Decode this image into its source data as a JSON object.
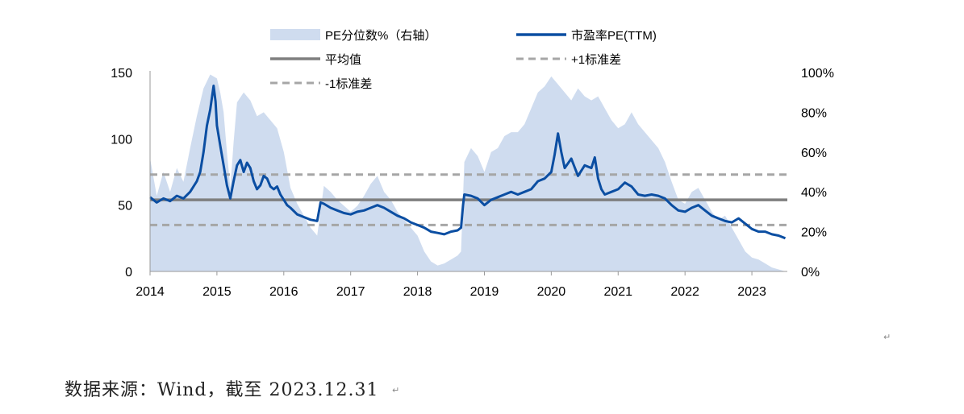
{
  "chart_data": {
    "type": "line",
    "title": "",
    "xlabel": "",
    "ylabel": "",
    "xlim": [
      2014.0,
      2023.53
    ],
    "ylim_left": [
      0,
      150
    ],
    "ylim_right": [
      0,
      1.0
    ],
    "left_ticks": [
      "150",
      "100",
      "50",
      "0"
    ],
    "left_tick_values": [
      150,
      100,
      50,
      0
    ],
    "right_ticks": [
      "100%",
      "80%",
      "60%",
      "40%",
      "20%",
      "0%"
    ],
    "right_tick_values": [
      1.0,
      0.8,
      0.6,
      0.4,
      0.2,
      0.0
    ],
    "x_ticks": [
      "2014",
      "2015",
      "2016",
      "2017",
      "2018",
      "2019",
      "2020",
      "2021",
      "2022",
      "2023"
    ],
    "x_tick_values": [
      2014,
      2015,
      2016,
      2017,
      2018,
      2019,
      2020,
      2021,
      2022,
      2023
    ],
    "grid": false,
    "legend": [
      {
        "label": "PE分位数%（右轴）",
        "style": "area",
        "color": "#cfdcef"
      },
      {
        "label": "市盈率PE(TTM)",
        "style": "line",
        "color": "#0b4ea2"
      },
      {
        "label": "平均值",
        "style": "line",
        "color": "#7f7f7f"
      },
      {
        "label": "+1标准差",
        "style": "dashed",
        "color": "#a6a6a6"
      },
      {
        "label": "-1标准差",
        "style": "dashed",
        "color": "#a6a6a6"
      }
    ],
    "colors": {
      "pe": "#0b4ea2",
      "percentile": "#cfdcef",
      "mean": "#7f7f7f",
      "std": "#a6a6a6"
    },
    "mean": 54,
    "plus_1_std": 73,
    "minus_1_std": 35,
    "series": [
      {
        "name": "市盈率PE(TTM)",
        "axis": "left",
        "x": [
          2014.0,
          2014.1,
          2014.2,
          2014.3,
          2014.4,
          2014.5,
          2014.6,
          2014.7,
          2014.75,
          2014.8,
          2014.85,
          2014.9,
          2014.95,
          2014.98,
          2015.0,
          2015.05,
          2015.1,
          2015.15,
          2015.2,
          2015.25,
          2015.3,
          2015.35,
          2015.4,
          2015.45,
          2015.5,
          2015.55,
          2015.6,
          2015.65,
          2015.7,
          2015.75,
          2015.8,
          2015.85,
          2015.9,
          2015.95,
          2016.0,
          2016.05,
          2016.1,
          2016.2,
          2016.3,
          2016.4,
          2016.5,
          2016.55,
          2016.6,
          2016.7,
          2016.8,
          2016.9,
          2017.0,
          2017.1,
          2017.2,
          2017.3,
          2017.4,
          2017.5,
          2017.6,
          2017.7,
          2017.8,
          2017.9,
          2018.0,
          2018.1,
          2018.2,
          2018.3,
          2018.4,
          2018.5,
          2018.6,
          2018.65,
          2018.68,
          2018.7,
          2018.8,
          2018.9,
          2019.0,
          2019.1,
          2019.2,
          2019.3,
          2019.4,
          2019.5,
          2019.6,
          2019.7,
          2019.8,
          2019.9,
          2020.0,
          2020.05,
          2020.1,
          2020.15,
          2020.2,
          2020.3,
          2020.4,
          2020.5,
          2020.6,
          2020.65,
          2020.7,
          2020.75,
          2020.8,
          2020.9,
          2021.0,
          2021.1,
          2021.2,
          2021.3,
          2021.4,
          2021.5,
          2021.6,
          2021.7,
          2021.8,
          2021.9,
          2022.0,
          2022.1,
          2022.2,
          2022.3,
          2022.4,
          2022.5,
          2022.6,
          2022.7,
          2022.8,
          2022.9,
          2023.0,
          2023.1,
          2023.2,
          2023.3,
          2023.4,
          2023.5
        ],
        "values": [
          56,
          52,
          55,
          53,
          57,
          55,
          60,
          68,
          75,
          90,
          110,
          122,
          140,
          128,
          110,
          95,
          80,
          65,
          55,
          68,
          80,
          84,
          75,
          82,
          78,
          68,
          62,
          65,
          72,
          70,
          64,
          62,
          64,
          58,
          54,
          50,
          48,
          43,
          41,
          39,
          38,
          52,
          51,
          48,
          46,
          44,
          43,
          45,
          46,
          48,
          50,
          48,
          45,
          42,
          40,
          37,
          35,
          33,
          30,
          29,
          28,
          30,
          31,
          33,
          50,
          58,
          57,
          55,
          50,
          54,
          56,
          58,
          60,
          58,
          60,
          62,
          68,
          70,
          75,
          88,
          104,
          90,
          78,
          85,
          72,
          80,
          78,
          86,
          70,
          62,
          58,
          60,
          62,
          67,
          64,
          58,
          57,
          58,
          57,
          55,
          50,
          46,
          45,
          48,
          50,
          46,
          42,
          40,
          38,
          37,
          40,
          36,
          32,
          30,
          30,
          28,
          27,
          25
        ]
      },
      {
        "name": "PE分位数%（右轴）",
        "axis": "right",
        "x": [
          2014.0,
          2014.1,
          2014.2,
          2014.3,
          2014.4,
          2014.5,
          2014.6,
          2014.7,
          2014.8,
          2014.9,
          2015.0,
          2015.05,
          2015.1,
          2015.15,
          2015.2,
          2015.25,
          2015.3,
          2015.4,
          2015.5,
          2015.6,
          2015.7,
          2015.8,
          2015.9,
          2016.0,
          2016.1,
          2016.2,
          2016.3,
          2016.4,
          2016.5,
          2016.6,
          2016.7,
          2016.8,
          2016.9,
          2017.0,
          2017.1,
          2017.2,
          2017.3,
          2017.4,
          2017.5,
          2017.6,
          2017.7,
          2017.8,
          2017.9,
          2018.0,
          2018.1,
          2018.2,
          2018.3,
          2018.4,
          2018.5,
          2018.6,
          2018.65,
          2018.7,
          2018.8,
          2018.9,
          2019.0,
          2019.1,
          2019.2,
          2019.3,
          2019.4,
          2019.5,
          2019.6,
          2019.7,
          2019.8,
          2019.9,
          2020.0,
          2020.1,
          2020.2,
          2020.3,
          2020.4,
          2020.5,
          2020.6,
          2020.7,
          2020.8,
          2020.9,
          2021.0,
          2021.1,
          2021.2,
          2021.3,
          2021.4,
          2021.5,
          2021.6,
          2021.7,
          2021.8,
          2021.9,
          2022.0,
          2022.1,
          2022.2,
          2022.3,
          2022.4,
          2022.5,
          2022.6,
          2022.7,
          2022.8,
          2022.9,
          2023.0,
          2023.1,
          2023.2,
          2023.3,
          2023.4,
          2023.5
        ],
        "values": [
          0.57,
          0.38,
          0.5,
          0.4,
          0.52,
          0.45,
          0.62,
          0.78,
          0.92,
          0.99,
          0.97,
          0.9,
          0.8,
          0.6,
          0.42,
          0.65,
          0.85,
          0.9,
          0.86,
          0.78,
          0.8,
          0.76,
          0.72,
          0.6,
          0.42,
          0.34,
          0.28,
          0.22,
          0.18,
          0.43,
          0.4,
          0.36,
          0.33,
          0.3,
          0.33,
          0.38,
          0.44,
          0.48,
          0.4,
          0.36,
          0.3,
          0.26,
          0.22,
          0.18,
          0.1,
          0.05,
          0.03,
          0.04,
          0.06,
          0.08,
          0.1,
          0.55,
          0.62,
          0.58,
          0.5,
          0.6,
          0.62,
          0.68,
          0.7,
          0.7,
          0.74,
          0.82,
          0.9,
          0.93,
          0.98,
          0.94,
          0.9,
          0.86,
          0.92,
          0.88,
          0.86,
          0.88,
          0.82,
          0.76,
          0.72,
          0.74,
          0.8,
          0.74,
          0.7,
          0.66,
          0.62,
          0.55,
          0.45,
          0.36,
          0.34,
          0.4,
          0.42,
          0.36,
          0.3,
          0.26,
          0.28,
          0.22,
          0.16,
          0.1,
          0.07,
          0.06,
          0.04,
          0.02,
          0.01,
          0.0
        ]
      }
    ]
  },
  "footer": {
    "source_text": "数据来源：Wind，截至 2023.12.31"
  }
}
